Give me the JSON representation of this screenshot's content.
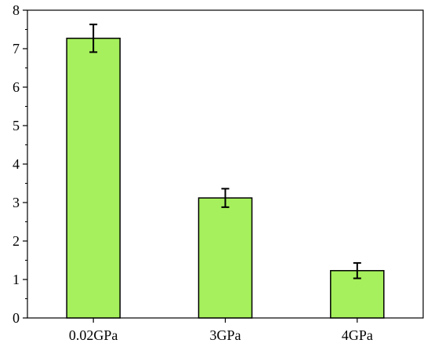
{
  "chart_data": {
    "type": "bar",
    "title": "",
    "xlabel": "",
    "ylabel": "",
    "categories": [
      "0.02GPa",
      "3GPa",
      "4GPa"
    ],
    "values": [
      7.27,
      3.12,
      1.23
    ],
    "errors": [
      0.36,
      0.24,
      0.2
    ],
    "ylim": [
      0,
      8
    ],
    "yticks": [
      "0",
      "1",
      "2",
      "3",
      "4",
      "5",
      "6",
      "7",
      "8"
    ],
    "grid": false,
    "legend": "none",
    "colors": {
      "bar_fill": "#a5f05c",
      "bar_stroke": "#000000",
      "axis": "#000000",
      "error_bar": "#000000"
    }
  }
}
